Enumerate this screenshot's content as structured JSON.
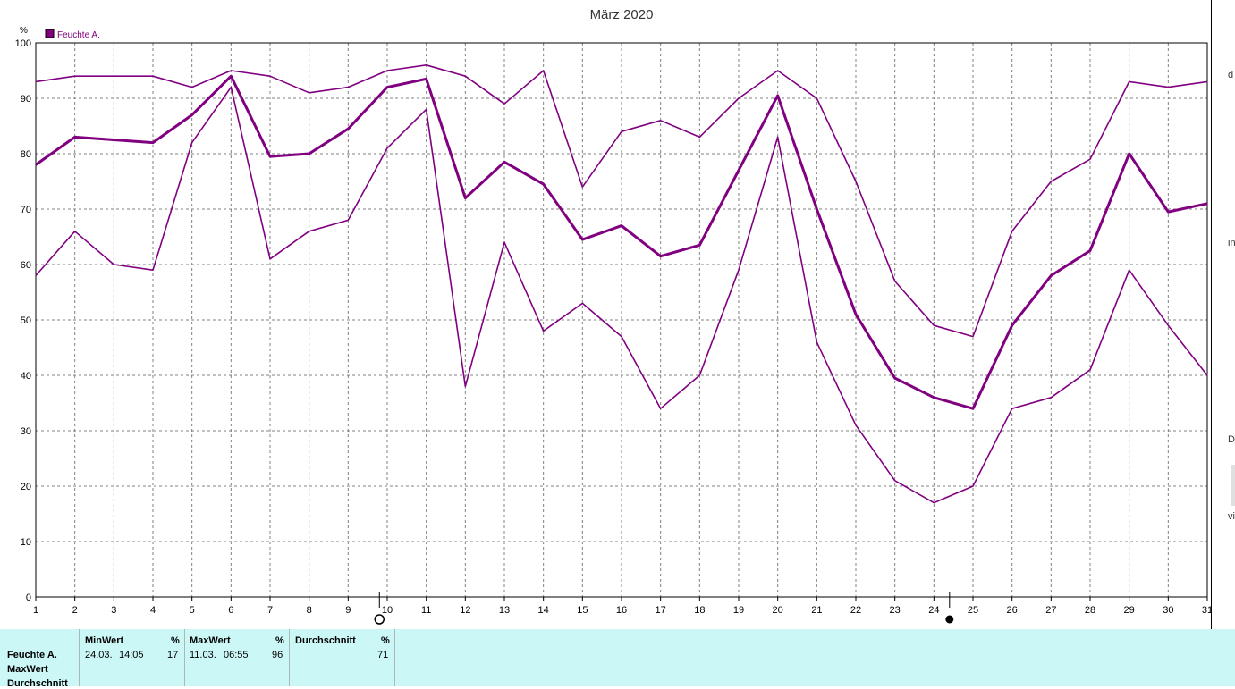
{
  "chart_data": {
    "type": "line",
    "title": "März 2020",
    "y_unit": "%",
    "legend": {
      "label": "Feuchte A.",
      "color": "#800080",
      "placement": "top-left"
    },
    "categories": [
      "1",
      "2",
      "3",
      "4",
      "5",
      "6",
      "7",
      "8",
      "9",
      "10",
      "11",
      "12",
      "13",
      "14",
      "15",
      "16",
      "17",
      "18",
      "19",
      "20",
      "21",
      "22",
      "23",
      "24",
      "25",
      "26",
      "27",
      "28",
      "29",
      "30",
      "31"
    ],
    "ylim": [
      0,
      100
    ],
    "yticks": [
      "0",
      "10",
      "20",
      "30",
      "40",
      "50",
      "60",
      "70",
      "80",
      "90",
      "100"
    ],
    "grid": true,
    "series": [
      {
        "role": "max",
        "color": "#800080",
        "values": [
          93,
          94,
          94,
          94,
          92,
          95,
          94,
          91,
          92,
          95,
          96,
          94,
          89,
          95,
          74,
          84,
          86,
          83,
          90,
          95,
          90,
          75,
          57,
          49,
          47,
          66,
          75,
          79,
          93,
          92,
          93
        ]
      },
      {
        "role": "avg",
        "color": "#800080",
        "values": [
          78,
          83,
          82.5,
          82,
          87,
          94,
          79.5,
          80,
          84.5,
          92,
          93.5,
          72,
          78.5,
          74.5,
          64.5,
          67,
          61.5,
          63.5,
          77,
          90.5,
          70,
          51,
          39.5,
          36,
          34,
          49,
          58,
          62.5,
          80,
          69.5,
          71
        ]
      },
      {
        "role": "min",
        "color": "#800080",
        "values": [
          58,
          66,
          60,
          59,
          82,
          92,
          61,
          66,
          68,
          81,
          88,
          38,
          64,
          48,
          53,
          47,
          34,
          40,
          59,
          83,
          46,
          31,
          21,
          17,
          20,
          34,
          36,
          41,
          59,
          49,
          40
        ]
      }
    ],
    "markers": [
      {
        "x": 9.8,
        "symbol": "open-circle"
      },
      {
        "x": 24.4,
        "symbol": "filled-circle"
      }
    ]
  },
  "summary": {
    "row_labels": [
      "Feuchte A.",
      "MaxWert",
      "Durchschnitt"
    ],
    "columns": [
      {
        "header": "MinWert",
        "unit": "%",
        "date": "24.03.",
        "time": "14:05",
        "value": "17"
      },
      {
        "header": "MaxWert",
        "unit": "%",
        "date": "11.03.",
        "time": "06:55",
        "value": "96"
      },
      {
        "header": "Durchschnitt",
        "unit": "%",
        "date": "",
        "time": "",
        "value": "71"
      }
    ]
  },
  "right_strip": {
    "letters": [
      "d",
      "in",
      "D",
      "vi"
    ]
  }
}
